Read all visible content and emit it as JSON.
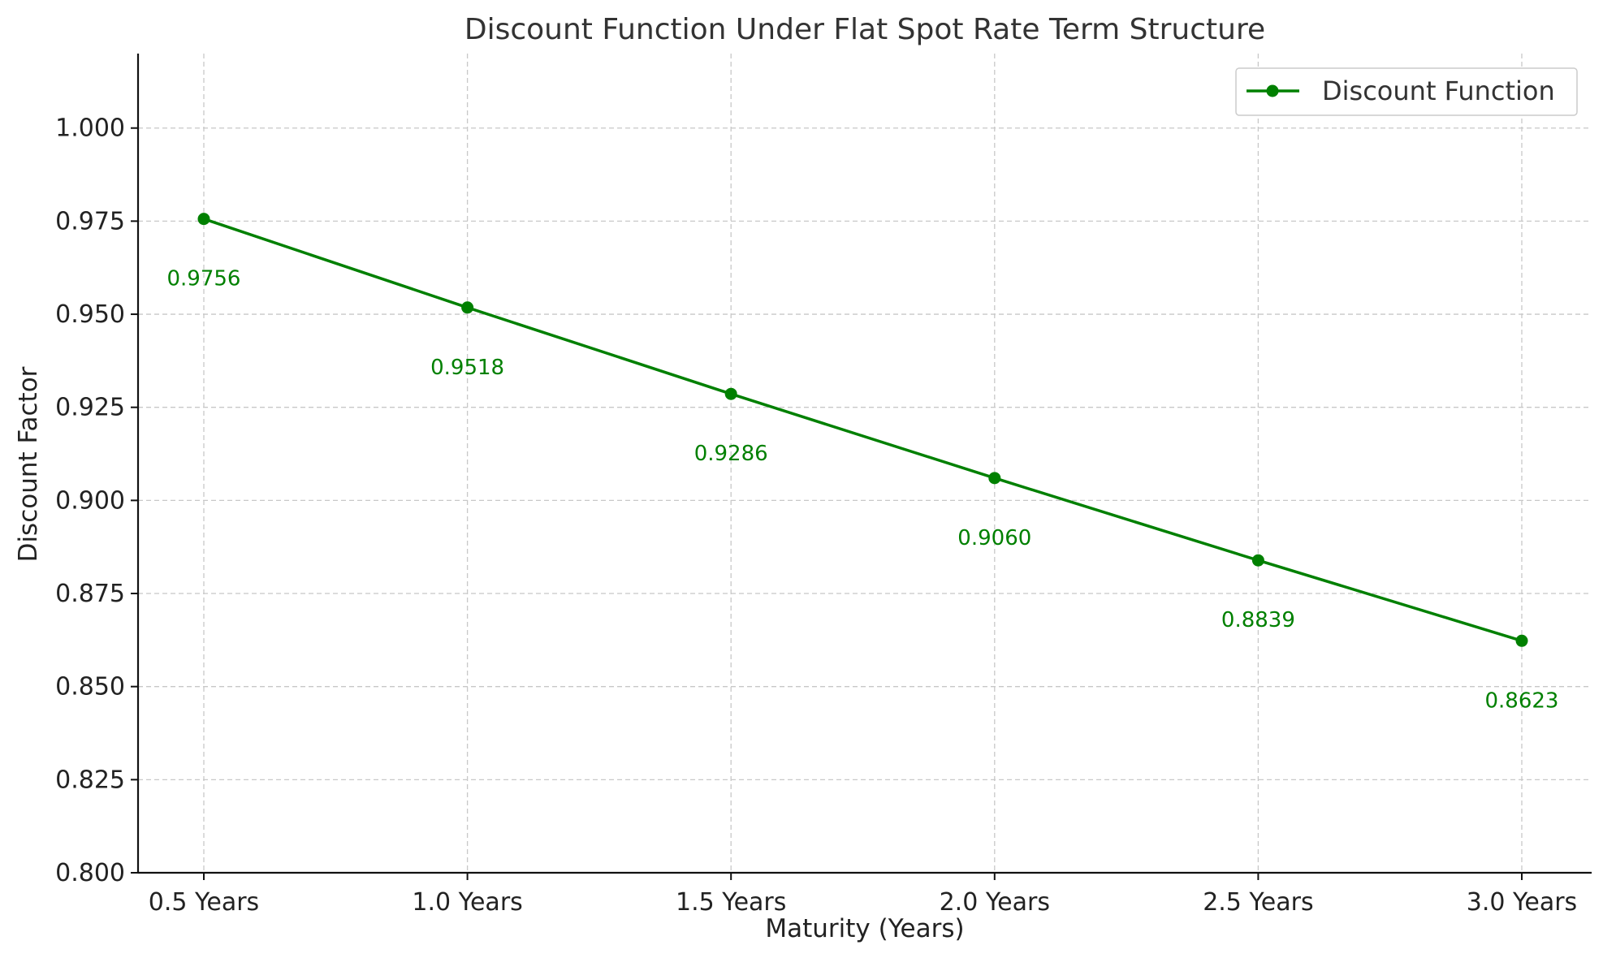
{
  "chart_data": {
    "type": "line",
    "title": "Discount Function Under Flat Spot Rate Term Structure",
    "xlabel": "Maturity (Years)",
    "ylabel": "Discount Factor",
    "categories": [
      "0.5 Years",
      "1.0 Years",
      "1.5 Years",
      "2.0 Years",
      "2.5 Years",
      "3.0 Years"
    ],
    "series": [
      {
        "name": "Discount Function",
        "values": [
          0.9756,
          0.9518,
          0.9286,
          0.906,
          0.8839,
          0.8623
        ],
        "labels": [
          "0.9756",
          "0.9518",
          "0.9286",
          "0.9060",
          "0.8839",
          "0.8623"
        ],
        "color": "#008000"
      }
    ],
    "ylim": [
      0.8,
      1.02
    ],
    "yticks": [
      0.8,
      0.825,
      0.85,
      0.875,
      0.9,
      0.925,
      0.95,
      0.975,
      1.0
    ],
    "ytick_labels": [
      "0.800",
      "0.825",
      "0.850",
      "0.875",
      "0.900",
      "0.925",
      "0.950",
      "0.975",
      "1.000"
    ],
    "grid": true,
    "legend_position": "top-right"
  }
}
